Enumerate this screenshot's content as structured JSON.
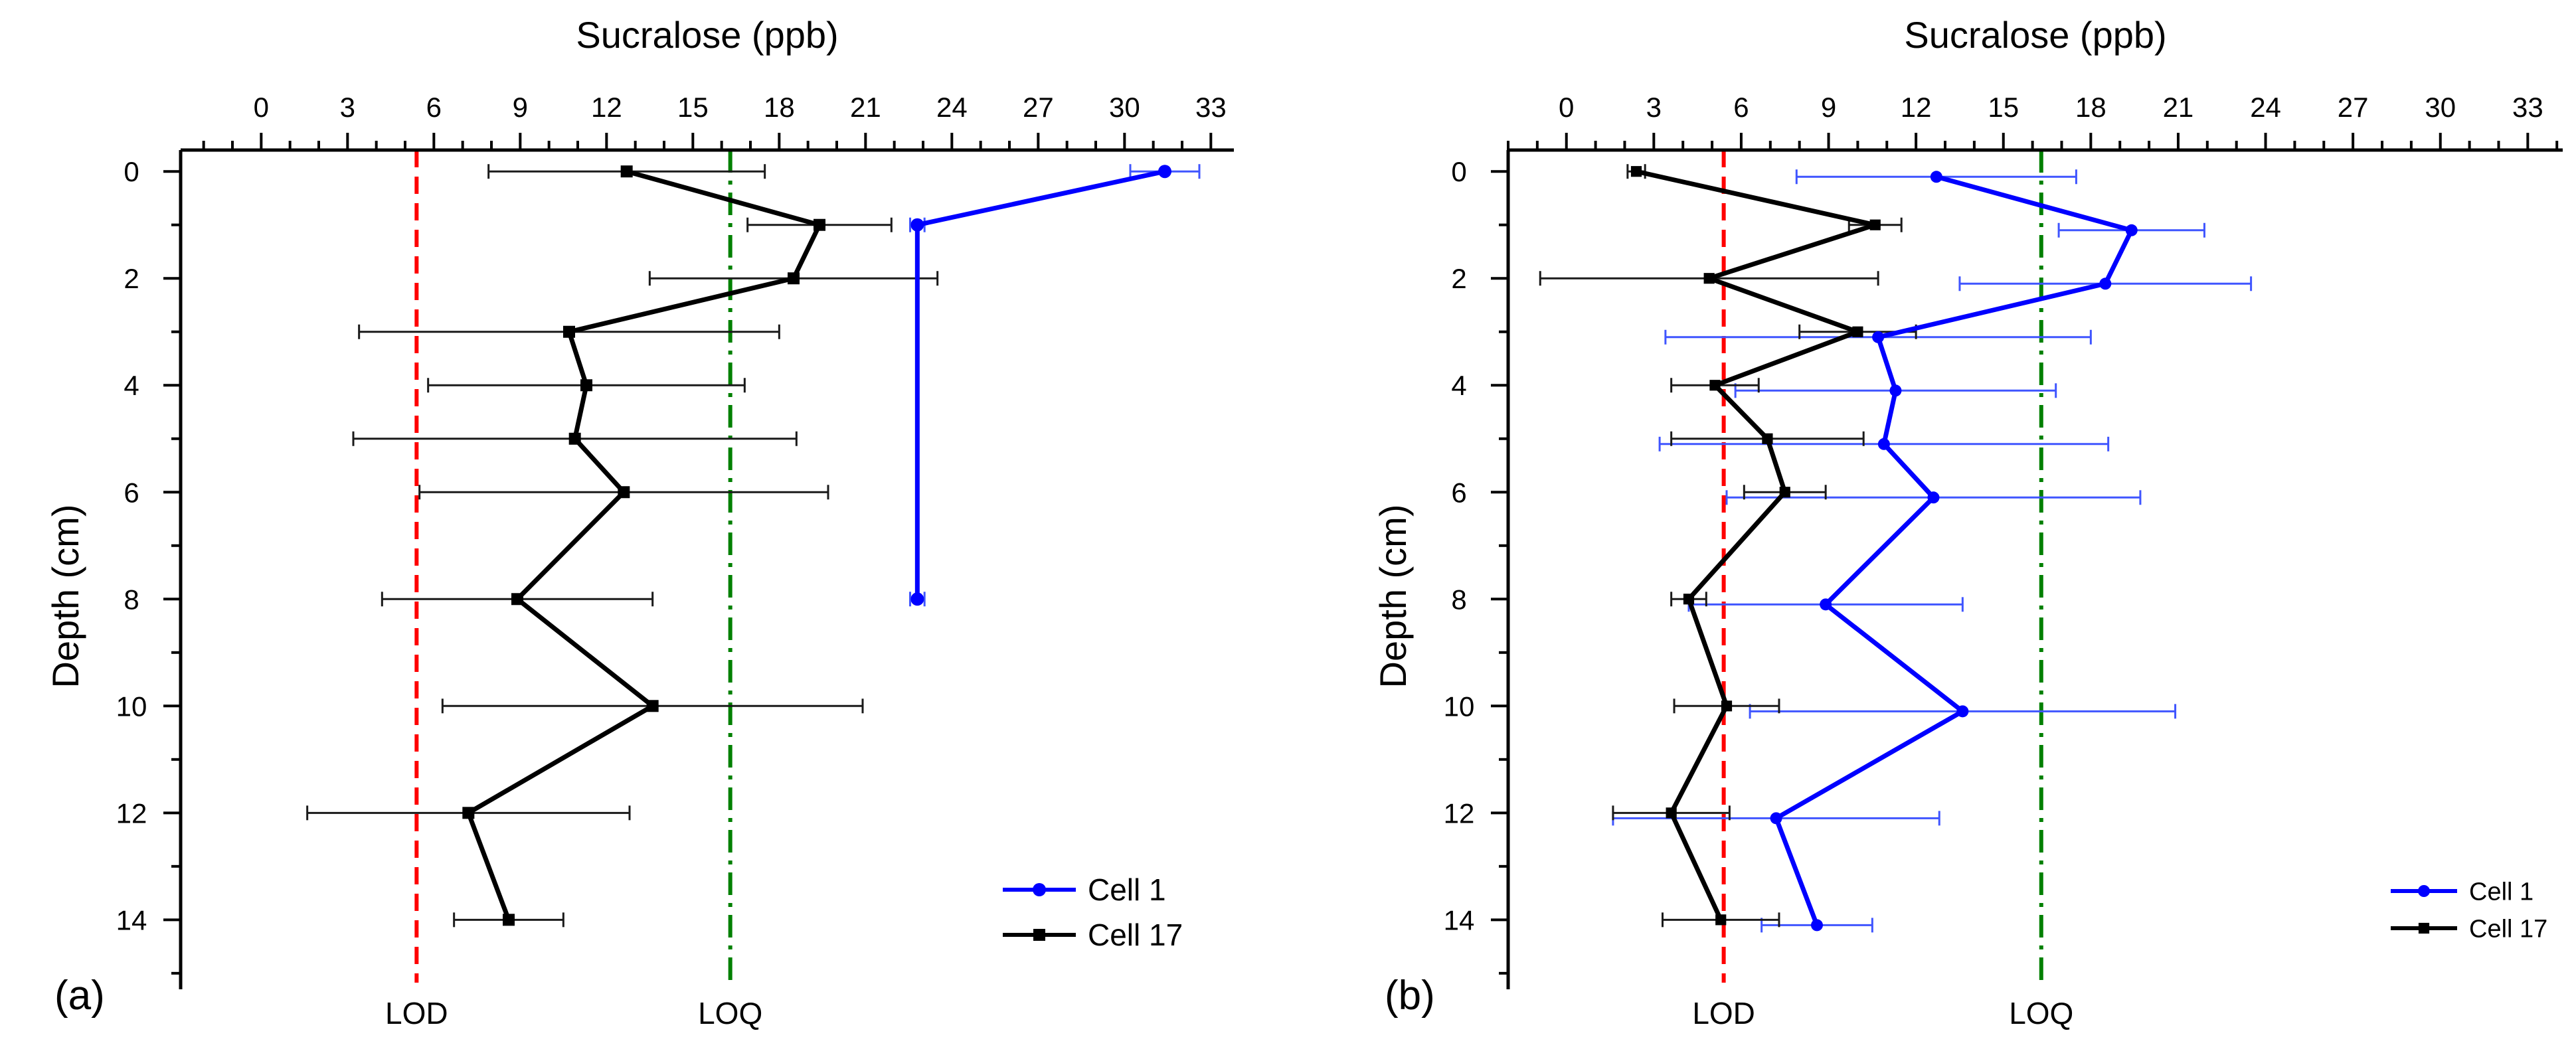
{
  "chart_data": [
    {
      "type": "line",
      "panel_label": "(a)",
      "xlabel": "Sucralose (ppb)",
      "ylabel": "Depth (cm)",
      "x_ticks": [
        0,
        3,
        6,
        9,
        12,
        15,
        18,
        21,
        24,
        27,
        30,
        33
      ],
      "y_ticks": [
        0,
        2,
        4,
        6,
        8,
        10,
        12,
        14
      ],
      "xlim": [
        -2.8,
        33.8
      ],
      "ylim": [
        15.3,
        -0.4
      ],
      "x_axis_position": "top",
      "reference_lines": [
        {
          "label": "LOD",
          "x": 5.4,
          "color": "#ff0000",
          "style": "dash"
        },
        {
          "label": "LOQ",
          "x": 16.3,
          "color": "#008000",
          "style": "dashdot"
        }
      ],
      "series": [
        {
          "name": "Cell 1",
          "color": "#0000ff",
          "marker": "circle",
          "points": [
            {
              "x": 31.4,
              "y": 0,
              "xerr": 1.2
            },
            {
              "x": 22.8,
              "y": 1,
              "xerr": 0.25
            },
            {
              "x": 22.8,
              "y": 8,
              "xerr": 0.25
            }
          ]
        },
        {
          "name": "Cell 17",
          "color": "#000000",
          "marker": "square",
          "points": [
            {
              "x": 12.7,
              "y": 0,
              "xerr": 4.8
            },
            {
              "x": 19.4,
              "y": 1,
              "xerr": 2.5
            },
            {
              "x": 18.5,
              "y": 2,
              "xerr": 5.0
            },
            {
              "x": 10.7,
              "y": 3,
              "xerr": 7.3
            },
            {
              "x": 11.3,
              "y": 4,
              "xerr": 5.5
            },
            {
              "x": 10.9,
              "y": 5,
              "xerr": 7.7
            },
            {
              "x": 12.6,
              "y": 6,
              "xerr": 7.1
            },
            {
              "x": 8.9,
              "y": 8,
              "xerr": 4.7
            },
            {
              "x": 13.6,
              "y": 10,
              "xerr": 7.3
            },
            {
              "x": 7.2,
              "y": 12,
              "xerr": 5.6
            },
            {
              "x": 8.6,
              "y": 14,
              "xerr": 1.9
            }
          ]
        }
      ],
      "legend": {
        "position": "bottom-right",
        "entries": [
          "Cell 1",
          "Cell 17"
        ]
      }
    },
    {
      "type": "line",
      "panel_label": "(b)",
      "xlabel": "Sucralose (ppb)",
      "ylabel": "Depth (cm)",
      "x_ticks": [
        0,
        3,
        6,
        9,
        12,
        15,
        18,
        21,
        24,
        27,
        30,
        33
      ],
      "y_ticks": [
        0,
        2,
        4,
        6,
        8,
        10,
        12,
        14
      ],
      "xlim": [
        -2.0,
        34.2
      ],
      "ylim": [
        15.3,
        -0.4
      ],
      "x_axis_position": "top",
      "reference_lines": [
        {
          "label": "LOD",
          "x": 5.4,
          "color": "#ff0000",
          "style": "dash"
        },
        {
          "label": "LOQ",
          "x": 16.3,
          "color": "#008000",
          "style": "dashdot"
        }
      ],
      "series": [
        {
          "name": "Cell 1",
          "color": "#0000ff",
          "marker": "circle",
          "points": [
            {
              "x": 12.7,
              "y": 0.1,
              "xerr": 4.8
            },
            {
              "x": 19.4,
              "y": 1.1,
              "xerr": 2.5
            },
            {
              "x": 18.5,
              "y": 2.1,
              "xerr": 5.0
            },
            {
              "x": 10.7,
              "y": 3.1,
              "xerr": 7.3
            },
            {
              "x": 11.3,
              "y": 4.1,
              "xerr": 5.5
            },
            {
              "x": 10.9,
              "y": 5.1,
              "xerr": 7.7
            },
            {
              "x": 12.6,
              "y": 6.1,
              "xerr": 7.1
            },
            {
              "x": 8.9,
              "y": 8.1,
              "xerr": 4.7
            },
            {
              "x": 13.6,
              "y": 10.1,
              "xerr": 7.3
            },
            {
              "x": 7.2,
              "y": 12.1,
              "xerr": 5.6
            },
            {
              "x": 8.6,
              "y": 14.1,
              "xerr": 1.9
            }
          ]
        },
        {
          "name": "Cell 17",
          "color": "#000000",
          "marker": "square",
          "points": [
            {
              "x": 2.4,
              "y": 0,
              "xerr": 0.3
            },
            {
              "x": 10.6,
              "y": 1,
              "xerr": 0.9
            },
            {
              "x": 4.9,
              "y": 2,
              "xerr": 5.8
            },
            {
              "x": 10.0,
              "y": 3,
              "xerr": 2.0
            },
            {
              "x": 5.1,
              "y": 4,
              "xerr": 1.5
            },
            {
              "x": 6.9,
              "y": 5,
              "xerr": 3.3
            },
            {
              "x": 7.5,
              "y": 6,
              "xerr": 1.4
            },
            {
              "x": 4.2,
              "y": 8,
              "xerr": 0.6
            },
            {
              "x": 5.5,
              "y": 10,
              "xerr": 1.8
            },
            {
              "x": 3.6,
              "y": 12,
              "xerr": 2.0
            },
            {
              "x": 5.3,
              "y": 14,
              "xerr": 2.0
            }
          ]
        }
      ],
      "legend": {
        "position": "bottom-right",
        "entries": [
          "Cell 1",
          "Cell 17"
        ]
      }
    }
  ]
}
